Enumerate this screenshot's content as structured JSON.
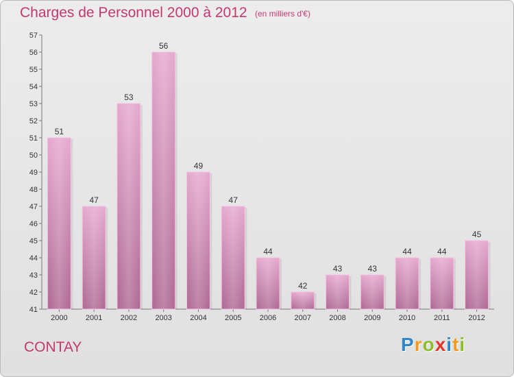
{
  "chart_data": {
    "type": "bar",
    "title": "Charges de Personnel 2000 à 2012",
    "subtitle": "(en milliers d'€)",
    "categories": [
      "2000",
      "2001",
      "2002",
      "2003",
      "2004",
      "2005",
      "2006",
      "2007",
      "2008",
      "2009",
      "2010",
      "2011",
      "2012"
    ],
    "values": [
      51,
      47,
      53,
      56,
      49,
      47,
      44,
      42,
      43,
      43,
      44,
      44,
      45
    ],
    "ylim": [
      41,
      57
    ],
    "yticks": [
      41,
      42,
      43,
      44,
      45,
      46,
      47,
      48,
      49,
      50,
      51,
      52,
      53,
      54,
      55,
      56,
      57
    ],
    "grid": false,
    "bar_color": "#d88fbd"
  },
  "commune": "CONTAY",
  "logo": {
    "letters": [
      {
        "char": "P",
        "color": "#2f86c9"
      },
      {
        "char": "r",
        "color": "#f29a1d"
      },
      {
        "char": "o",
        "color": "#8cbd2b"
      },
      {
        "char": "x",
        "color": "#e0342a"
      },
      {
        "char": "i",
        "color": "#2f86c9"
      },
      {
        "char": "t",
        "color": "#f29a1d"
      },
      {
        "char": "i",
        "color": "#8cbd2b"
      }
    ]
  }
}
